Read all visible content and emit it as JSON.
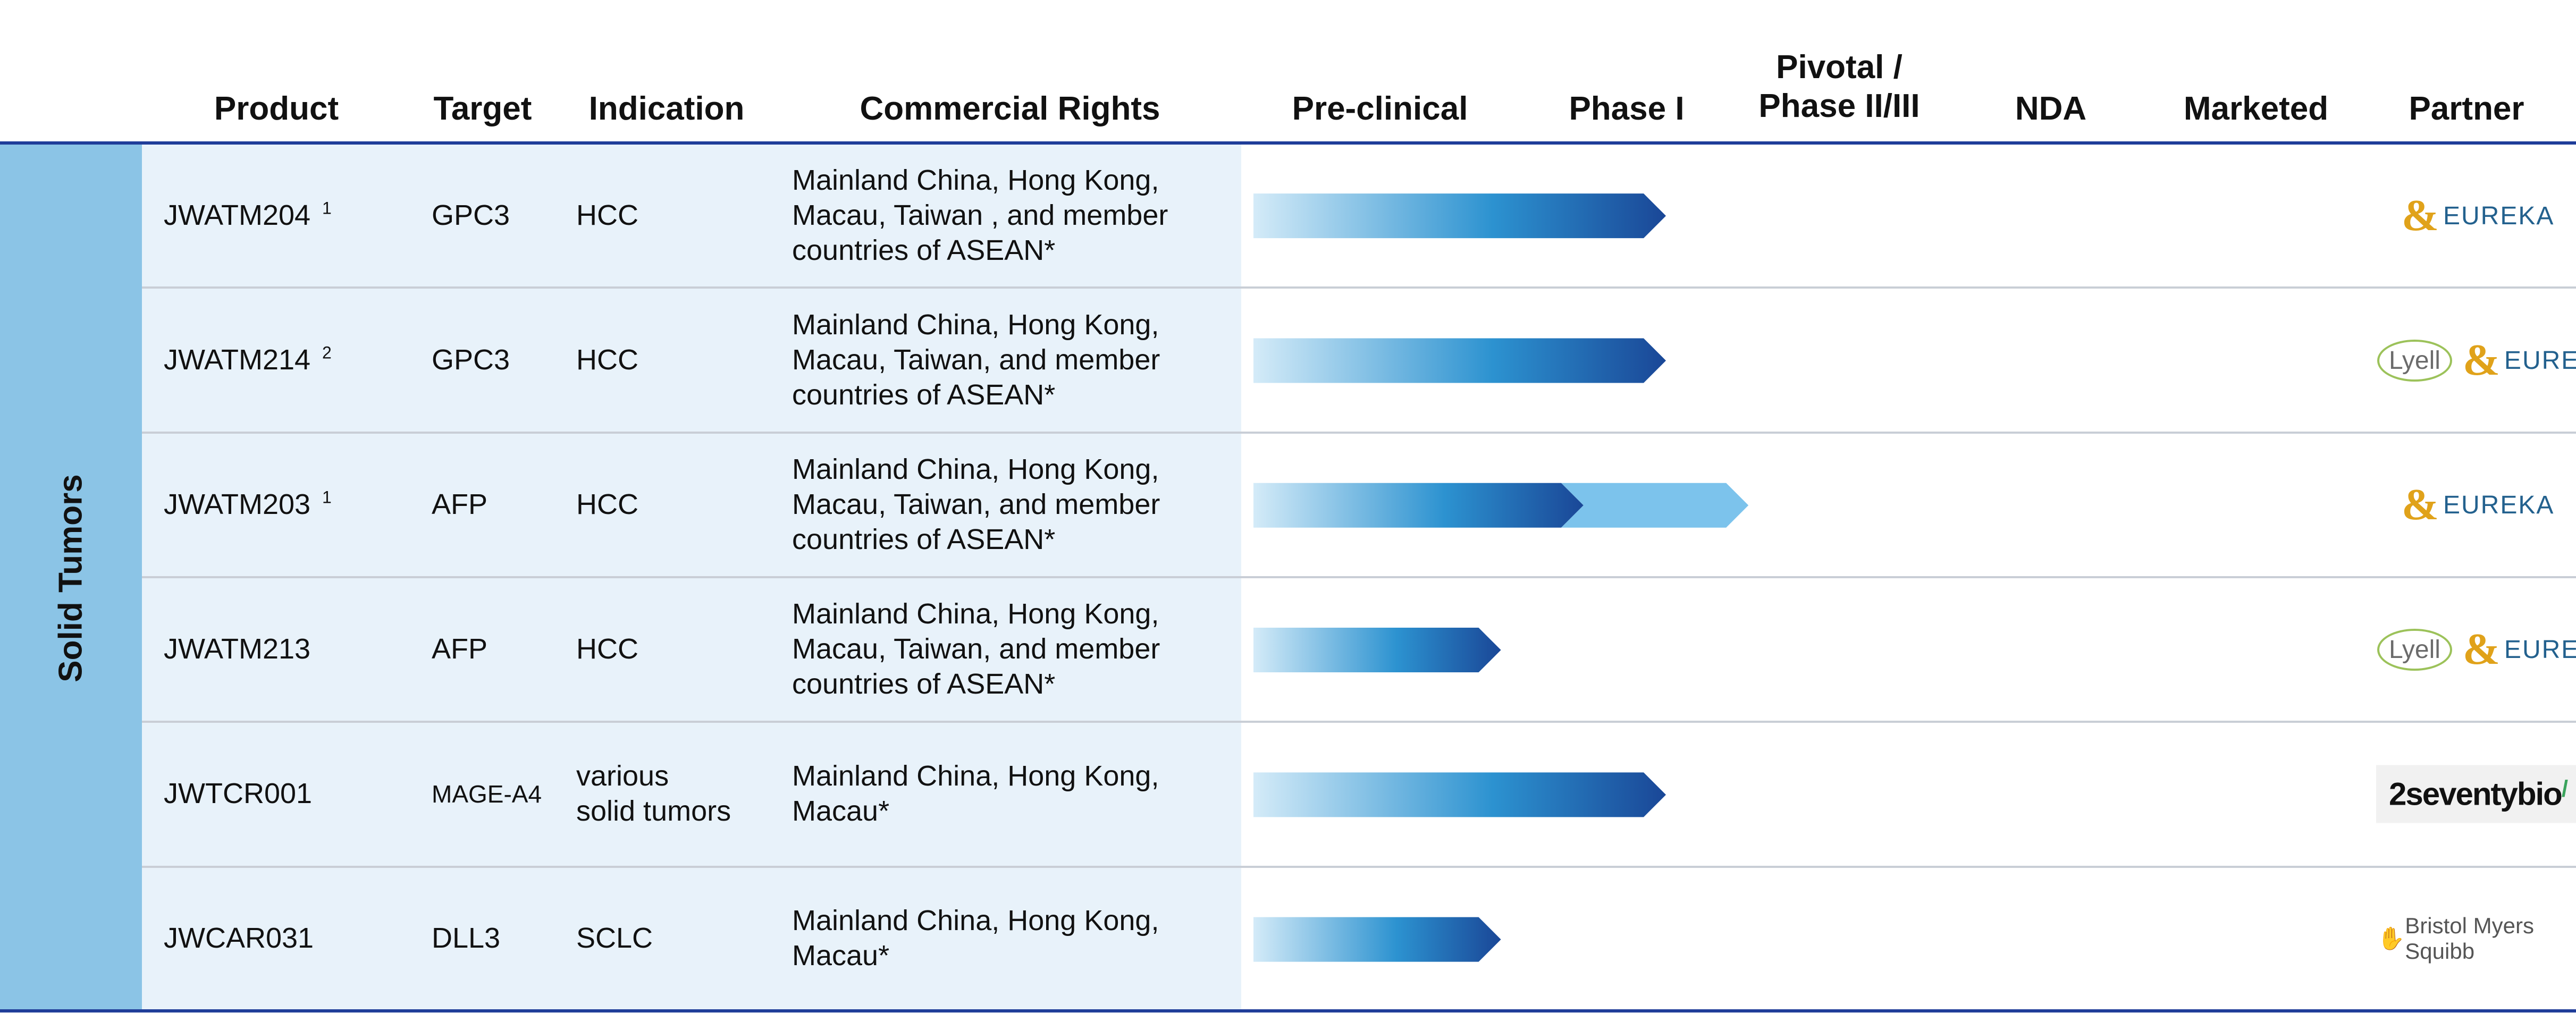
{
  "header": {
    "product": "Product",
    "target": "Target",
    "indication": "Indication",
    "commercial_rights": "Commercial Rights",
    "preclinical": "Pre-clinical",
    "phase1": "Phase I",
    "pivotal_line1": "Pivotal /",
    "pivotal_line2": "Phase II/III",
    "nda": "NDA",
    "marketed": "Marketed",
    "partner": "Partner"
  },
  "category_label": "Solid Tumors",
  "colors": {
    "rule": "#1f3d99",
    "category_band": "#8bc4e6",
    "info_panel": "#e8f2fa",
    "bar_light": "#d4ebf8",
    "bar_mid": "#2c92d0",
    "bar_dark": "#1a4797",
    "bar_extension": "#7cc3ec"
  },
  "rows": [
    {
      "product": "JWATM204",
      "footnote": "1",
      "target": "GPC3",
      "indication": [
        "HCC"
      ],
      "rights": [
        "Mainland China, Hong Kong,",
        "Macau, Taiwan , and member",
        "countries of ASEAN*"
      ],
      "partners": [
        "eureka"
      ]
    },
    {
      "product": "JWATM214",
      "footnote": "2",
      "target": "GPC3",
      "indication": [
        "HCC"
      ],
      "rights": [
        "Mainland China, Hong Kong,",
        "Macau, Taiwan, and member",
        "countries of ASEAN*"
      ],
      "partners": [
        "lyell",
        "eureka"
      ]
    },
    {
      "product": "JWATM203",
      "footnote": "1",
      "target": "AFP",
      "indication": [
        "HCC"
      ],
      "rights": [
        "Mainland China, Hong Kong,",
        "Macau, Taiwan, and member",
        "countries of ASEAN*"
      ],
      "partners": [
        "eureka"
      ]
    },
    {
      "product": "JWATM213",
      "footnote": "",
      "target": "AFP",
      "indication": [
        "HCC"
      ],
      "rights": [
        "Mainland China, Hong Kong,",
        "Macau, Taiwan, and member",
        "countries of ASEAN*"
      ],
      "partners": [
        "lyell",
        "eureka"
      ]
    },
    {
      "product": "JWTCR001",
      "footnote": "",
      "target": "MAGE-A4",
      "indication": [
        "various",
        "solid tumors"
      ],
      "rights": [
        "Mainland China, Hong Kong,",
        "Macau*"
      ],
      "partners": [
        "2seventy"
      ]
    },
    {
      "product": "JWCAR031",
      "footnote": "",
      "target": "DLL3",
      "indication": [
        "SCLC"
      ],
      "rights": [
        "Mainland China, Hong Kong,",
        "Macau*"
      ],
      "partners": [
        "bms"
      ]
    }
  ],
  "logos": {
    "eureka_mark": "&",
    "eureka_text": "EUREKA",
    "lyell_text": "Lyell",
    "seventy_text": "2seventybio",
    "seventy_accent": "/",
    "bms_hand": "✋",
    "bms_text": "Bristol Myers Squibb"
  },
  "chart_data": {
    "type": "bar",
    "orientation": "horizontal",
    "stages": [
      "Pre-clinical",
      "Phase I",
      "Pivotal / Phase II/III",
      "NDA",
      "Marketed"
    ],
    "categories": [
      "JWATM204",
      "JWATM214",
      "JWATM203",
      "JWATM213",
      "JWTCR001",
      "JWCAR031"
    ],
    "progress": [
      {
        "product": "JWATM204",
        "value": 2.0
      },
      {
        "product": "JWATM214",
        "value": 2.0
      },
      {
        "product": "JWATM203",
        "value": 1.6,
        "extension_to": 2.4
      },
      {
        "product": "JWATM213",
        "value": 1.2
      },
      {
        "product": "JWTCR001",
        "value": 2.0
      },
      {
        "product": "JWCAR031",
        "value": 1.2
      }
    ],
    "value_unit": "stage columns from start of Pre-clinical"
  }
}
